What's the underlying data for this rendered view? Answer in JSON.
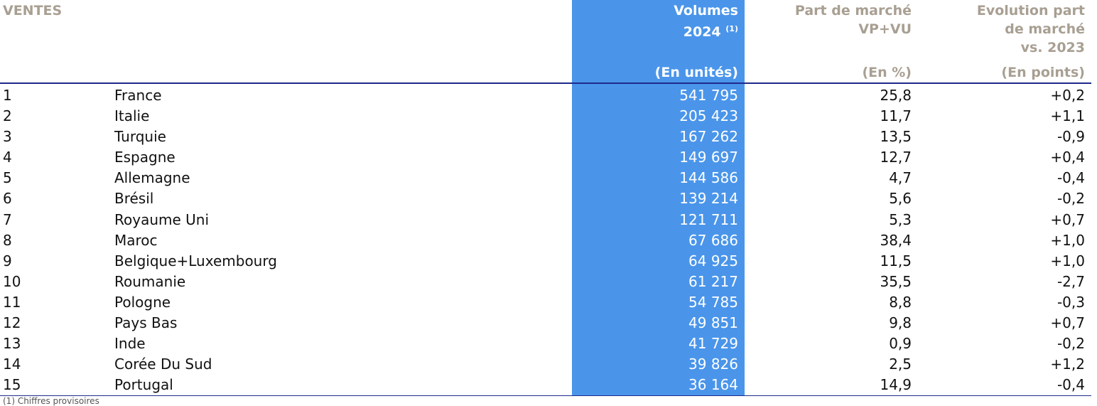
{
  "header": {
    "ventes": "VENTES",
    "volumes_line1": "Volumes",
    "volumes_line2": "2024",
    "volumes_note": "(1)",
    "volumes_unit": "(En unités)",
    "part_line1": "Part de marché",
    "part_line2": "VP+VU",
    "part_unit": "(En %)",
    "evo_line1": "Evolution part",
    "evo_line2": "de marché",
    "evo_line3": "vs. 2023",
    "evo_unit": "(En points)"
  },
  "colors": {
    "highlight": "#4a95ea",
    "header_text": "#a89f92",
    "rule": "#1f2a8c"
  },
  "rows": [
    {
      "rank": "1",
      "country": "France",
      "volume": "541 795",
      "share": "25,8",
      "change": "+0,2"
    },
    {
      "rank": "2",
      "country": "Italie",
      "volume": "205 423",
      "share": "11,7",
      "change": "+1,1"
    },
    {
      "rank": "3",
      "country": "Turquie",
      "volume": "167 262",
      "share": "13,5",
      "change": "-0,9"
    },
    {
      "rank": "4",
      "country": "Espagne",
      "volume": "149 697",
      "share": "12,7",
      "change": "+0,4"
    },
    {
      "rank": "5",
      "country": "Allemagne",
      "volume": "144 586",
      "share": "4,7",
      "change": "-0,4"
    },
    {
      "rank": "6",
      "country": "Brésil",
      "volume": "139 214",
      "share": "5,6",
      "change": "-0,2"
    },
    {
      "rank": "7",
      "country": "Royaume Uni",
      "volume": "121 711",
      "share": "5,3",
      "change": "+0,7"
    },
    {
      "rank": "8",
      "country": "Maroc",
      "volume": "67 686",
      "share": "38,4",
      "change": "+1,0"
    },
    {
      "rank": "9",
      "country": "Belgique+Luxembourg",
      "volume": "64 925",
      "share": "11,5",
      "change": "+1,0"
    },
    {
      "rank": "10",
      "country": "Roumanie",
      "volume": "61 217",
      "share": "35,5",
      "change": "-2,7"
    },
    {
      "rank": "11",
      "country": "Pologne",
      "volume": "54 785",
      "share": "8,8",
      "change": "-0,3"
    },
    {
      "rank": "12",
      "country": "Pays Bas",
      "volume": "49 851",
      "share": "9,8",
      "change": "+0,7"
    },
    {
      "rank": "13",
      "country": "Inde",
      "volume": "41 729",
      "share": "0,9",
      "change": "-0,2"
    },
    {
      "rank": "14",
      "country": "Corée Du Sud",
      "volume": "39 826",
      "share": "2,5",
      "change": "+1,2"
    },
    {
      "rank": "15",
      "country": "Portugal",
      "volume": "36 164",
      "share": "14,9",
      "change": "-0,4"
    }
  ],
  "footnote": "(1) Chiffres provisoires"
}
